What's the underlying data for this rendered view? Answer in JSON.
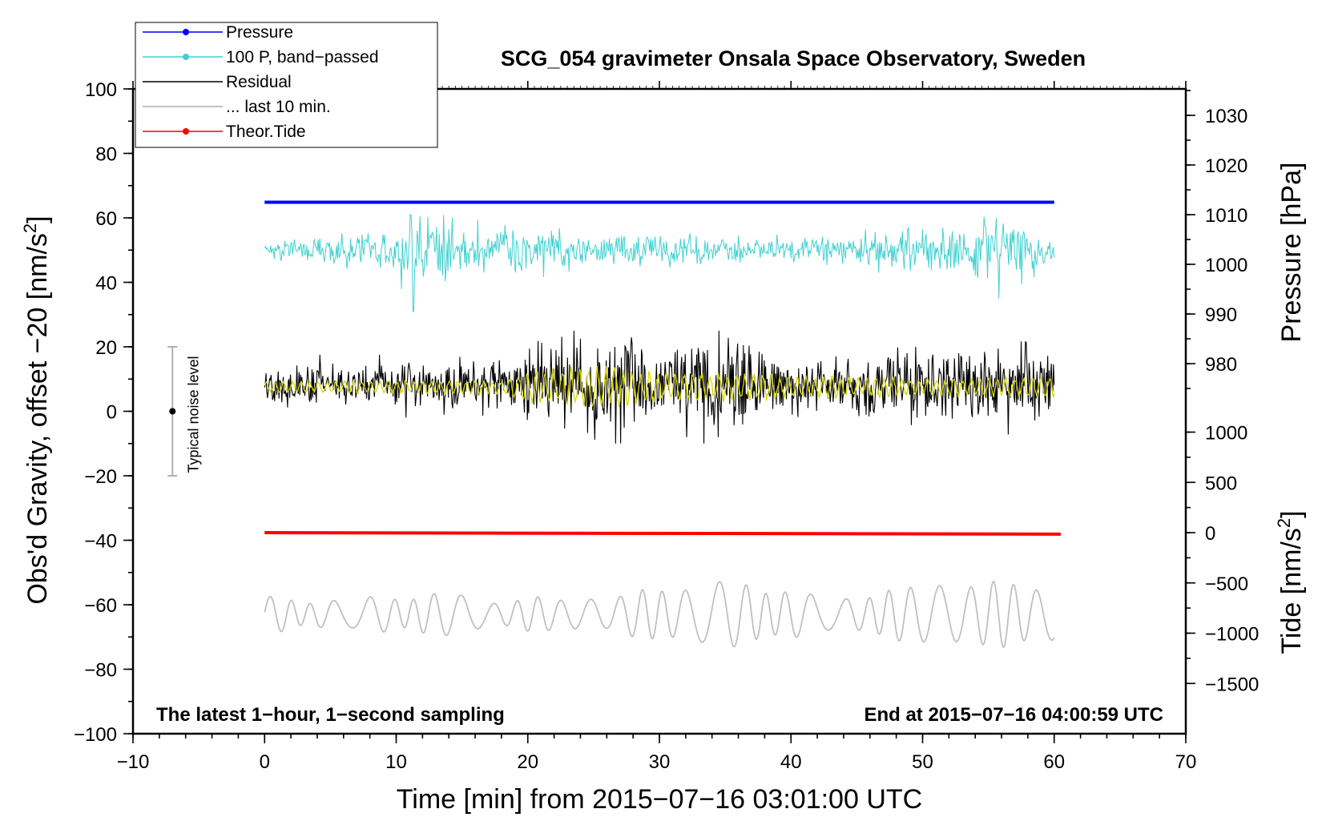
{
  "chart_data": {
    "type": "line",
    "title": "SCG_054 gravimeter Onsala Space Observatory, Sweden",
    "annotation_left": "The latest 1-hour, 1-second sampling",
    "annotation_right": "End at 2015-07-16 04:00:59 UTC",
    "xlabel": "Time [min] from 2015-07-16 03:01:00 UTC",
    "ylabel_left_main": "Obs'd Gravity, offset  -20 [nm/s",
    "ylabel_left_sup": "2",
    "ylabel_left_end": "]",
    "ylabel_right_top": "Pressure [hPa]",
    "ylabel_right_bottom_main": "Tide [nm/s",
    "ylabel_right_bottom_sup": "2",
    "ylabel_right_bottom_end": "]",
    "xlim": [
      -10,
      70
    ],
    "ylim_left": [
      -100,
      100
    ],
    "xticks": [
      "-10",
      "0",
      "10",
      "20",
      "30",
      "40",
      "50",
      "60",
      "70"
    ],
    "yticks_left": [
      "-100",
      "-80",
      "-60",
      "-40",
      "-20",
      "0",
      "20",
      "40",
      "60",
      "80",
      "100"
    ],
    "yticks_pressure": [
      "980",
      "990",
      "1000",
      "1010",
      "1020",
      "1030"
    ],
    "yticks_tide": [
      "-1500",
      "-1000",
      "-500",
      "0",
      "500",
      "1000"
    ],
    "grid": false,
    "legend_position": "top-left",
    "legend": [
      {
        "label": "Pressure",
        "color": "#0000ff",
        "marker": true
      },
      {
        "label": "100 P, band-passed",
        "color": "#40d0d0",
        "marker": true
      },
      {
        "label": "Residual",
        "color": "#000000",
        "marker": false
      },
      {
        "label": "... last 10 min.",
        "color": "#c0c0c0",
        "marker": false
      },
      {
        "label": "Theor.Tide",
        "color": "#ff0000",
        "marker": true
      }
    ],
    "noise_bar": {
      "label": "Typical noise level",
      "x": -7,
      "center": 0,
      "low": -20,
      "high": 20
    },
    "series": [
      {
        "name": "Pressure",
        "color": "#0000ff",
        "x_range": [
          0,
          60
        ],
        "level_hPa": 1012.5
      },
      {
        "name": "100 P, band-passed",
        "color": "#40d0d0",
        "x_range": [
          0,
          60
        ],
        "level": 50,
        "min": 31,
        "max": 61
      },
      {
        "name": "Residual",
        "color": "#000000",
        "x_range": [
          0,
          60
        ],
        "level": 8,
        "min": -10,
        "max": 25
      },
      {
        "name": "... last 10 min.",
        "color": "#c0c0c0",
        "x_range": [
          0,
          60
        ],
        "level": -63,
        "min": -76,
        "max": -47
      },
      {
        "name": "Theor.Tide",
        "color": "#ff0000",
        "x_range": [
          0,
          60.5
        ],
        "start_nms2": 0,
        "end_nms2": -15
      },
      {
        "color": "#d8d800",
        "x_range": [
          0,
          60
        ],
        "level": 7.5,
        "min": -3,
        "max": 17
      }
    ]
  }
}
